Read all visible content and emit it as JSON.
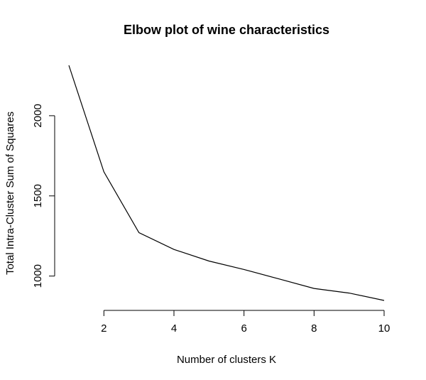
{
  "chart_data": {
    "type": "line",
    "title": "Elbow plot of wine characteristics",
    "xlabel": "Number of clusters K",
    "ylabel": "Total Intra-Cluster Sum of Squares",
    "x": [
      1,
      2,
      3,
      4,
      5,
      6,
      7,
      8,
      9,
      10
    ],
    "series": [
      {
        "values": [
          2314,
          1650,
          1271,
          1166,
          1094,
          1041,
          982,
          923,
          894,
          848
        ]
      }
    ],
    "xlim": [
      1,
      10
    ],
    "ylim": [
      848,
      2314
    ],
    "xticks": [
      2,
      4,
      6,
      8,
      10
    ],
    "yticks": [
      1000,
      1500,
      2000
    ],
    "grid": false,
    "line_color": "#000000"
  }
}
